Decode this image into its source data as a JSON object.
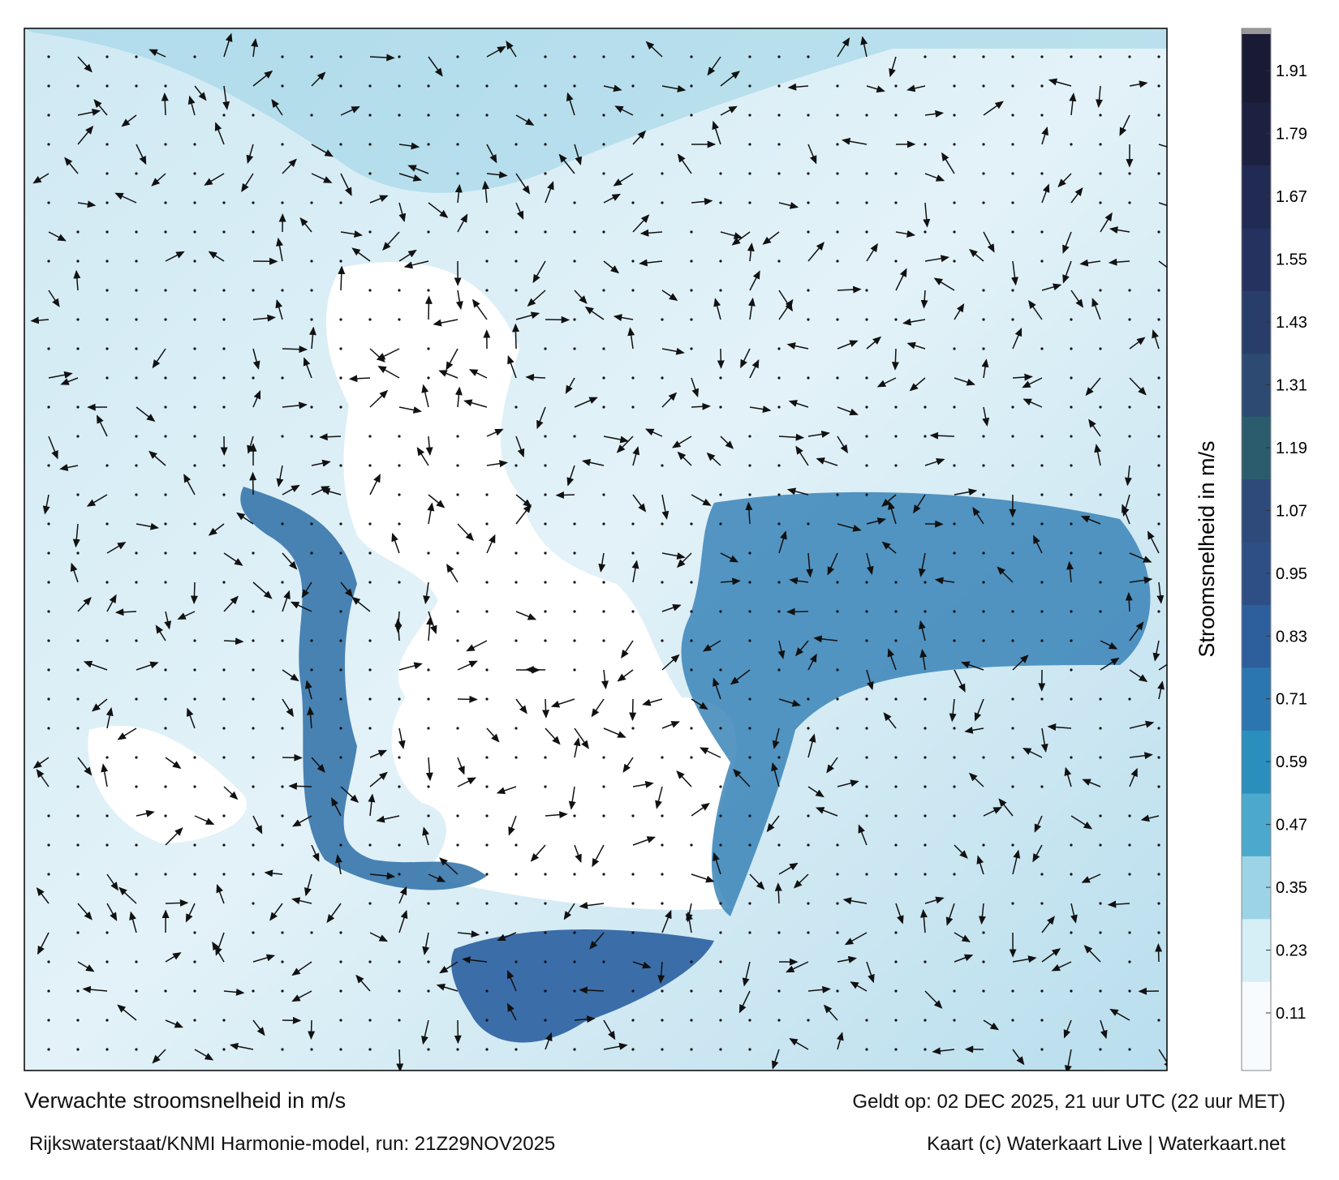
{
  "title": "Verwachte stroomsnelheid in m/s",
  "valid_time": "Geldt op: 02 DEC 2025, 21 uur UTC (22 uur MET)",
  "source": "Rijkswaterstaat/KNMI Harmonie-model, run: 21Z29NOV2025",
  "credit": "Kaart (c) Waterkaart Live | Waterkaart.net",
  "colorbar": {
    "label": "Stroomsnelheid in m/s",
    "range": [
      0,
      1.98
    ],
    "ticks": [
      0.11,
      0.23,
      0.35,
      0.47,
      0.59,
      0.71,
      0.83,
      0.95,
      1.07,
      1.19,
      1.31,
      1.43,
      1.55,
      1.67,
      1.79,
      1.91
    ]
  }
}
